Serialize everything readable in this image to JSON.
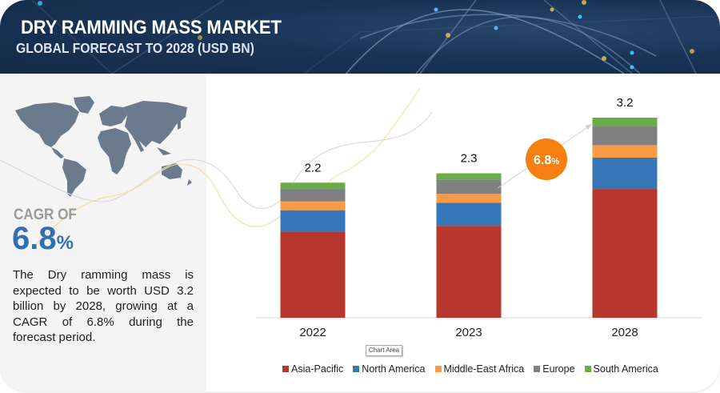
{
  "header": {
    "title": "DRY RAMMING MASS MARKET",
    "subtitle": "GLOBAL FORECAST TO 2028 (USD BN)"
  },
  "left_panel": {
    "map_icon": "world-map-icon",
    "cagr_label": "CAGR OF",
    "cagr_value": "6.8",
    "cagr_unit": "%",
    "description": "The  Dry ramming mass is expected to be worth USD 3.2 billion by 2028, growing at a CAGR of 6.8% during the forecast period."
  },
  "callout": {
    "value": "6.8",
    "unit": "%",
    "color": "#f5800f"
  },
  "tooltip": "Chart Area",
  "chart_data": {
    "type": "bar",
    "stacked": true,
    "title": "",
    "xlabel": "",
    "ylabel": "USD BN",
    "categories": [
      "2022",
      "2023",
      "2028"
    ],
    "totals": [
      "2.2",
      "2.3",
      "3.2"
    ],
    "ylim": [
      0,
      3.2
    ],
    "grid": false,
    "legend_position": "bottom",
    "series": [
      {
        "name": "Asia-Pacific",
        "color": "#b7372f",
        "values": [
          1.37,
          1.47,
          2.06
        ]
      },
      {
        "name": "North America",
        "color": "#3777b8",
        "values": [
          0.35,
          0.37,
          0.5
        ]
      },
      {
        "name": "Middle-East Africa",
        "color": "#f99a45",
        "values": [
          0.14,
          0.14,
          0.2
        ]
      },
      {
        "name": "Europe",
        "color": "#808080",
        "values": [
          0.2,
          0.23,
          0.3
        ]
      },
      {
        "name": "South America",
        "color": "#6aac46",
        "values": [
          0.1,
          0.1,
          0.14
        ]
      }
    ]
  }
}
